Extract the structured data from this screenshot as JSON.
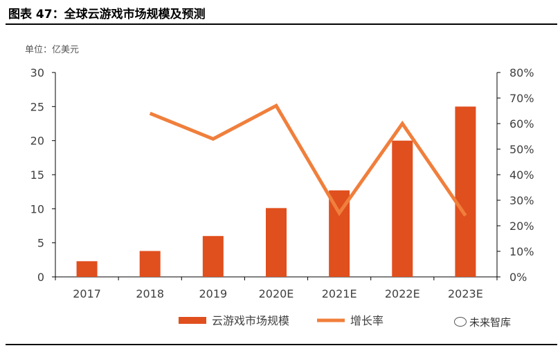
{
  "header": {
    "title": "图表 47：全球云游戏市场规模及预测"
  },
  "unit_label": "单位：亿美元",
  "chart_data": {
    "type": "bar",
    "categories": [
      "2017",
      "2018",
      "2019",
      "2020E",
      "2021E",
      "2022E",
      "2023E"
    ],
    "series": [
      {
        "name": "云游戏市场规模",
        "type": "bar",
        "axis": "left",
        "color": "#e04f1e",
        "values": [
          2.3,
          3.8,
          6.0,
          10.1,
          12.7,
          20.0,
          25.0
        ]
      },
      {
        "name": "增长率",
        "type": "line",
        "axis": "right",
        "color": "#f07f3c",
        "values": [
          null,
          0.64,
          0.54,
          0.67,
          0.25,
          0.6,
          0.24
        ]
      }
    ],
    "y_left": {
      "range": [
        0,
        30
      ],
      "ticks": [
        0,
        5,
        10,
        15,
        20,
        25,
        30
      ],
      "tick_labels": [
        "0",
        "5",
        "10",
        "15",
        "20",
        "25",
        "30"
      ]
    },
    "y_right": {
      "range": [
        0,
        0.8
      ],
      "ticks": [
        0,
        0.1,
        0.2,
        0.3,
        0.4,
        0.5,
        0.6,
        0.7,
        0.8
      ],
      "tick_labels": [
        "0%",
        "10%",
        "20%",
        "30%",
        "40%",
        "50%",
        "60%",
        "70%",
        "80%"
      ]
    },
    "grid": false,
    "legend_position": "bottom"
  },
  "watermark": "未来智库"
}
